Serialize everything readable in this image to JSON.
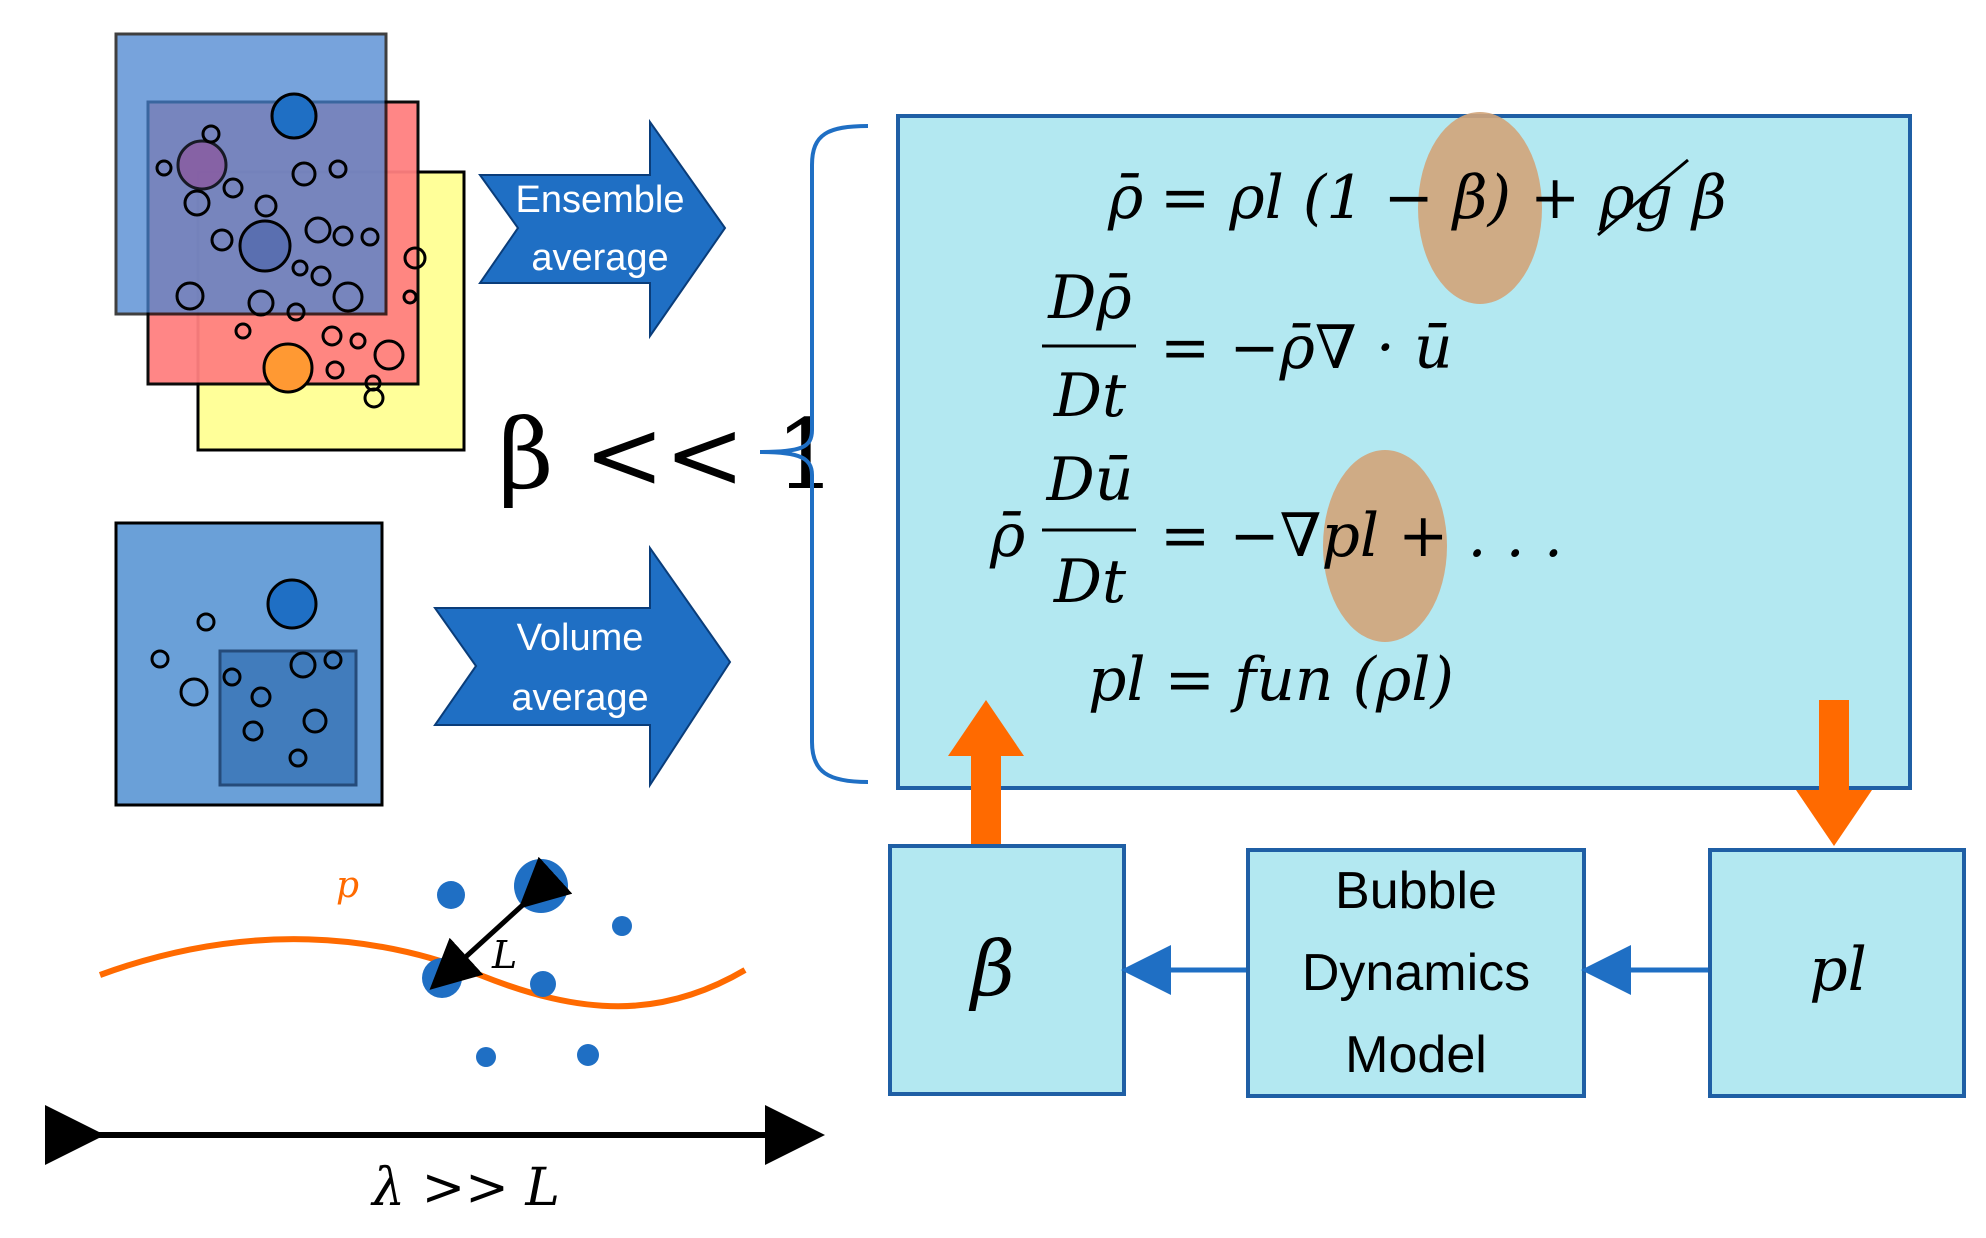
{
  "arrows": {
    "ensemble_line1": "Ensemble",
    "ensemble_line2": "average",
    "volume_line1": "Volume",
    "volume_line2": "average"
  },
  "condition": {
    "beta_ll_1": "β << 1"
  },
  "equations": {
    "eq1_lhs": "ρ̄",
    "eq1_rhs": "= ρl (1 − β) + ρg β",
    "eq2_num": "Dρ̄",
    "eq2_den": "Dt",
    "eq2_rhs": "= −ρ̄∇ · ū",
    "eq3_pre": "ρ̄",
    "eq3_num": "Dū",
    "eq3_den": "Dt",
    "eq3_rhs": "= −∇pl + . . .",
    "eq4": "pl = fun (ρl)"
  },
  "boxes": {
    "beta_label": "β",
    "model_line1": "Bubble",
    "model_line2": "Dynamics",
    "model_line3": "Model",
    "pl_label": "pl"
  },
  "bubble_sketch": {
    "p_label": "p",
    "L_label": "L",
    "scale_label": "λ >> L"
  },
  "colors": {
    "accent_blue": "#1f6fc4",
    "panel_cyan": "#b3e8f1",
    "orange": "#ff6a00",
    "highlight_tan": "#d2a479"
  }
}
